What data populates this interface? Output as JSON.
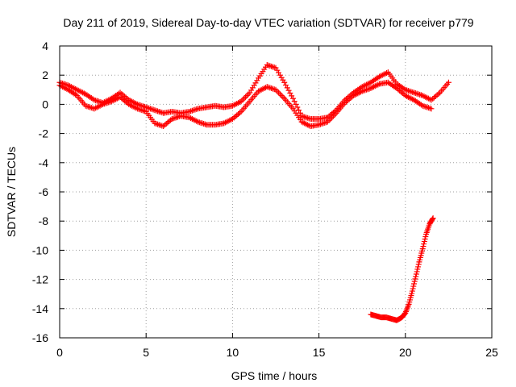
{
  "chart_data": {
    "type": "scatter",
    "title": "Day 211 of 2019, Sidereal Day-to-day VTEC variation (SDTVAR) for receiver p779",
    "xlabel": "GPS time / hours",
    "ylabel": "SDTVAR / TECUs",
    "xlim": [
      0,
      25
    ],
    "ylim": [
      -16,
      4
    ],
    "xticks": [
      0,
      5,
      10,
      15,
      20,
      25
    ],
    "yticks": [
      -16,
      -14,
      -12,
      -10,
      -8,
      -6,
      -4,
      -2,
      0,
      2,
      4
    ],
    "grid": true,
    "marker": "plus",
    "series_color": "#ff0000",
    "series": [
      {
        "name": "upper trace",
        "x": [
          0,
          0.5,
          1,
          1.5,
          2,
          2.5,
          3,
          3.5,
          4,
          4.5,
          5,
          5.5,
          6,
          6.5,
          7,
          7.5,
          8,
          8.5,
          9,
          9.5,
          10,
          10.5,
          11,
          11.5,
          12,
          12.5,
          13,
          13.5,
          14,
          14.5,
          15,
          15.5,
          16,
          16.5,
          17,
          17.5,
          18,
          18.5,
          19,
          19.5,
          20,
          20.5,
          21,
          21.5,
          22,
          22.5
        ],
        "y": [
          1.5,
          1.3,
          1.0,
          0.7,
          0.3,
          0.1,
          0.4,
          0.8,
          0.3,
          0.0,
          -0.2,
          -0.4,
          -0.6,
          -0.5,
          -0.6,
          -0.5,
          -0.3,
          -0.2,
          -0.1,
          -0.2,
          -0.1,
          0.2,
          0.8,
          1.8,
          2.7,
          2.5,
          1.5,
          0.4,
          -0.8,
          -1.0,
          -1.0,
          -0.9,
          -0.4,
          0.3,
          0.8,
          1.2,
          1.5,
          1.9,
          2.2,
          1.4,
          1.0,
          0.8,
          0.6,
          0.3,
          0.8,
          1.5
        ]
      },
      {
        "name": "lower trace",
        "x": [
          0,
          0.5,
          1,
          1.5,
          2,
          2.5,
          3,
          3.5,
          4,
          4.5,
          5,
          5.5,
          6,
          6.5,
          7,
          7.5,
          8,
          8.5,
          9,
          9.5,
          10,
          10.5,
          11,
          11.5,
          12,
          12.5,
          13,
          13.5,
          14,
          14.5,
          15,
          15.5,
          16,
          16.5,
          17,
          17.5,
          18,
          18.5,
          19,
          19.5,
          20,
          20.5,
          21,
          21.5
        ],
        "y": [
          1.3,
          1.0,
          0.6,
          -0.1,
          -0.3,
          0.0,
          0.2,
          0.5,
          0.0,
          -0.3,
          -0.5,
          -1.3,
          -1.5,
          -1.0,
          -0.8,
          -0.9,
          -1.2,
          -1.4,
          -1.4,
          -1.3,
          -1.0,
          -0.5,
          0.2,
          0.9,
          1.2,
          1.0,
          0.4,
          -0.3,
          -1.2,
          -1.5,
          -1.4,
          -1.2,
          -0.6,
          0.1,
          0.6,
          0.9,
          1.1,
          1.4,
          1.5,
          1.1,
          0.6,
          0.3,
          -0.1,
          -0.3
        ]
      },
      {
        "name": "descending segment",
        "x": [
          18.0,
          18.3,
          18.6,
          18.9,
          19.2,
          19.5,
          19.8,
          20.0,
          20.2,
          20.4,
          20.6,
          20.8,
          21.0,
          21.2,
          21.4,
          21.6
        ],
        "y": [
          -14.4,
          -14.5,
          -14.6,
          -14.6,
          -14.7,
          -14.8,
          -14.6,
          -14.3,
          -13.7,
          -12.8,
          -11.8,
          -10.8,
          -9.9,
          -8.9,
          -8.2,
          -7.8
        ]
      }
    ]
  }
}
